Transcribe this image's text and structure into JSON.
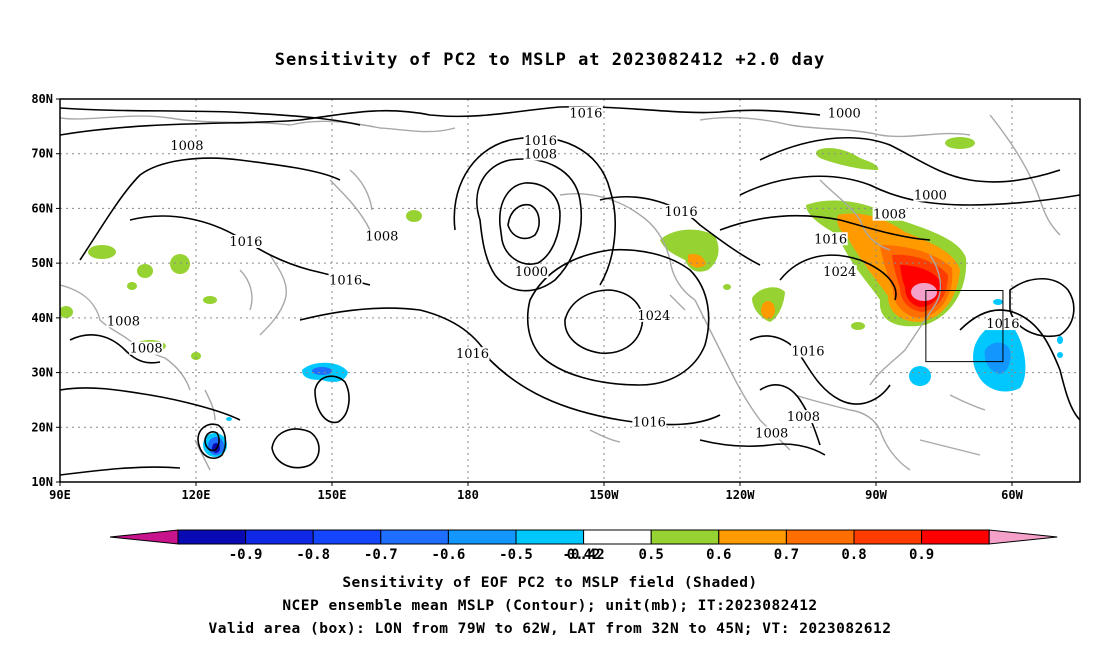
{
  "title": "Sensitivity of PC2 to MSLP at 2023082412 +2.0 day",
  "map": {
    "lat_ticks": [
      "80N",
      "70N",
      "60N",
      "50N",
      "40N",
      "30N",
      "20N",
      "10N"
    ],
    "lon_ticks": [
      "90E",
      "120E",
      "150E",
      "180",
      "150W",
      "120W",
      "90W",
      "60W"
    ],
    "lat_range": [
      10,
      80
    ],
    "lon_range": [
      90,
      315
    ],
    "grid": true,
    "contour_labels": [
      {
        "text": "1016",
        "lon": 206,
        "lat": 77
      },
      {
        "text": "1000",
        "lon": 263,
        "lat": 77
      },
      {
        "text": "1008",
        "lon": 118,
        "lat": 71
      },
      {
        "text": "1016",
        "lon": 196,
        "lat": 72
      },
      {
        "text": "1008",
        "lon": 196,
        "lat": 69.5
      },
      {
        "text": "1000",
        "lon": 282,
        "lat": 62
      },
      {
        "text": "1008",
        "lon": 273,
        "lat": 58.5
      },
      {
        "text": "1016",
        "lon": 227,
        "lat": 59
      },
      {
        "text": "1016",
        "lon": 260,
        "lat": 54
      },
      {
        "text": "1016",
        "lon": 131,
        "lat": 53.5
      },
      {
        "text": "1008",
        "lon": 161,
        "lat": 54.5
      },
      {
        "text": "1000",
        "lon": 194,
        "lat": 48
      },
      {
        "text": "1024",
        "lon": 262,
        "lat": 48
      },
      {
        "text": "1016",
        "lon": 153,
        "lat": 46.5
      },
      {
        "text": "1024",
        "lon": 221,
        "lat": 40
      },
      {
        "text": "1008",
        "lon": 104,
        "lat": 39
      },
      {
        "text": "1016",
        "lon": 298,
        "lat": 38.5
      },
      {
        "text": "1008",
        "lon": 109,
        "lat": 34
      },
      {
        "text": "1016",
        "lon": 181,
        "lat": 33
      },
      {
        "text": "1016",
        "lon": 255,
        "lat": 33.5
      },
      {
        "text": "1016",
        "lon": 220,
        "lat": 20.5
      },
      {
        "text": "1008",
        "lon": 254,
        "lat": 21.5
      },
      {
        "text": "1008",
        "lon": 247,
        "lat": 18.5
      }
    ],
    "valid_box": {
      "lon_min": 281,
      "lon_max": 298,
      "lat_min": 32,
      "lat_max": 45
    }
  },
  "colorbar": {
    "labels": [
      "-0.9",
      "-0.8",
      "-0.7",
      "-0.6",
      "-0.5",
      "-0.42",
      "0.42",
      "0.5",
      "0.6",
      "0.7",
      "0.8",
      "0.9"
    ],
    "colors": [
      "#0a0ab4",
      "#0f28e6",
      "#1446ff",
      "#1e6eff",
      "#1496ff",
      "#00c8ff",
      "#ffffff",
      "#96d232",
      "#ff9b00",
      "#ff6e00",
      "#ff3c00",
      "#ff0000"
    ],
    "low_color": "#c8148c",
    "high_color": "#f5a0c8"
  },
  "captions": {
    "line1": "Sensitivity of EOF PC2 to MSLP field (Shaded)",
    "line2": "NCEP ensemble mean MSLP (Contour); unit(mb); IT:2023082412",
    "line3": "Valid area (box): LON from 79W to 62W, LAT from 32N to 45N; VT: 2023082612"
  }
}
